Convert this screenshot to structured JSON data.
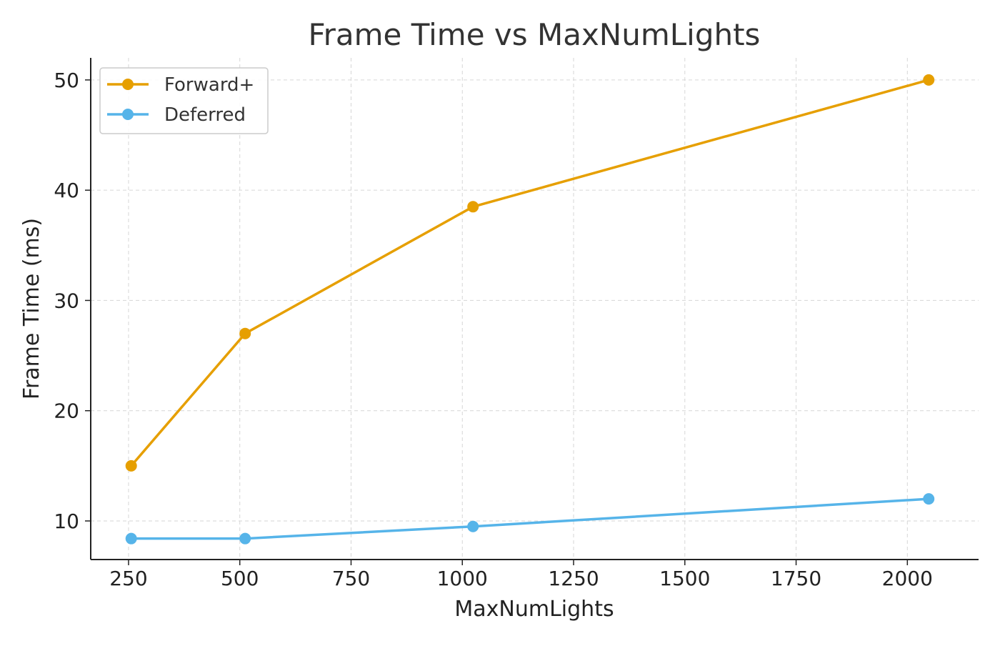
{
  "chart_data": {
    "type": "line",
    "title": "Frame Time vs MaxNumLights",
    "xlabel": "MaxNumLights",
    "ylabel": "Frame Time (ms)",
    "xlim": [
      165,
      2160
    ],
    "ylim": [
      6.5,
      52.0
    ],
    "xticks": [
      250,
      500,
      750,
      1000,
      1250,
      1500,
      1750,
      2000
    ],
    "yticks": [
      10,
      20,
      30,
      40,
      50
    ],
    "grid": true,
    "legend_position": "top-left",
    "series": [
      {
        "name": "Forward+",
        "color": "#E69F00",
        "x": [
          256,
          512,
          1024,
          2048
        ],
        "y": [
          15.0,
          27.0,
          38.5,
          50.0
        ]
      },
      {
        "name": "Deferred",
        "color": "#56B4E9",
        "x": [
          256,
          512,
          1024,
          2048
        ],
        "y": [
          8.4,
          8.4,
          9.5,
          12.0
        ]
      }
    ]
  }
}
